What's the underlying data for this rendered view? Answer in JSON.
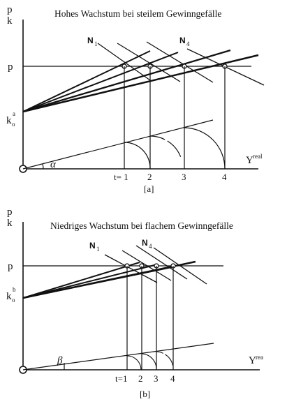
{
  "panel_a": {
    "title": "Hohes Wachstum bei steilem Gewinngefälle",
    "y_axis_label_top": "p",
    "y_axis_label_bottom": "k",
    "p_label": "p",
    "k0_label": "k",
    "k0_sub": "o",
    "k0_sup": "a",
    "curve_label_first": "N",
    "curve_label_first_sub": "1",
    "curve_label_last": "N",
    "curve_label_last_sub": "4",
    "angle_label": "α",
    "x_axis_label": "Y",
    "x_axis_sup": "real",
    "tick_labels": [
      "t= 1",
      "2",
      "3",
      "4"
    ],
    "caption": "[a]"
  },
  "panel_b": {
    "title": "Niedriges Wachstum bei flachem Gewinngefälle",
    "y_axis_label_top": "p",
    "y_axis_label_bottom": "k",
    "p_label": "p",
    "k0_label": "k",
    "k0_sub": "o",
    "k0_sup": "b",
    "curve_label_first": "N",
    "curve_label_first_sub": "1",
    "curve_label_last": "N",
    "curve_label_last_sub": "4",
    "angle_label": "β",
    "x_axis_label": "Y",
    "x_axis_sup": "rea",
    "tick_labels": [
      "t=1",
      "2",
      "3",
      "4"
    ],
    "caption": "[b]"
  }
}
